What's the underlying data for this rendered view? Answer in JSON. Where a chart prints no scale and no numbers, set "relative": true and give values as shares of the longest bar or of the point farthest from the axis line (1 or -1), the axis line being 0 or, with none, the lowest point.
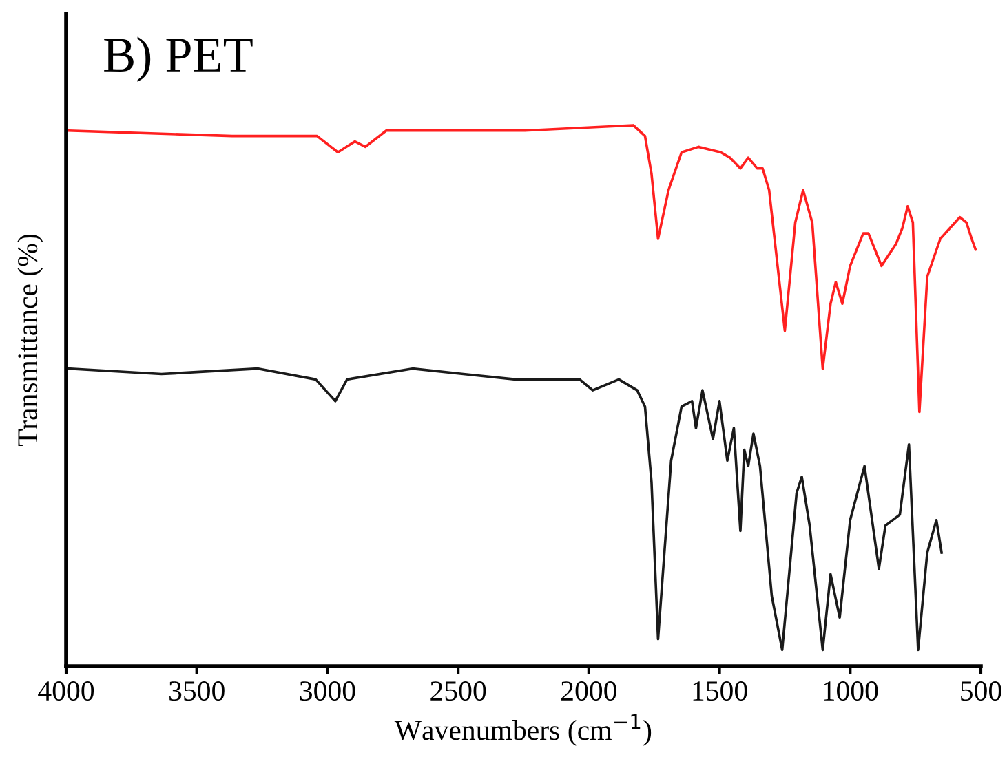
{
  "chart_data": {
    "type": "line",
    "title": "B) PET",
    "xlabel": "Wavenumbers (cm$^{−1}$)",
    "ylabel": "Transmittance (%)",
    "relative": true,
    "xlim": [
      4000,
      500
    ],
    "xticks": [
      4000,
      3500,
      3000,
      2500,
      2000,
      1500,
      1000,
      500
    ],
    "grid": false,
    "legend": false,
    "marker": "none",
    "line_style": "solid",
    "series": [
      {
        "color": "#ff2020",
        "x": [
          3990,
          3365,
          3040,
          2960,
          2895,
          2855,
          2775,
          2250,
          1830,
          1785,
          1760,
          1735,
          1695,
          1645,
          1580,
          1495,
          1460,
          1420,
          1390,
          1355,
          1335,
          1310,
          1250,
          1210,
          1180,
          1145,
          1105,
          1075,
          1055,
          1030,
          1000,
          950,
          930,
          880,
          825,
          800,
          780,
          760,
          735,
          705,
          655,
          580,
          555,
          535,
          520
        ],
        "values": [
          0.99,
          0.98,
          0.98,
          0.95,
          0.97,
          0.96,
          0.99,
          0.99,
          1.0,
          0.98,
          0.91,
          0.79,
          0.88,
          0.95,
          0.96,
          0.95,
          0.94,
          0.92,
          0.94,
          0.92,
          0.92,
          0.88,
          0.62,
          0.82,
          0.88,
          0.82,
          0.55,
          0.67,
          0.71,
          0.67,
          0.74,
          0.8,
          0.8,
          0.74,
          0.78,
          0.81,
          0.85,
          0.82,
          0.47,
          0.72,
          0.79,
          0.83,
          0.82,
          0.79,
          0.77
        ]
      },
      {
        "color": "#1a1a1a",
        "x": [
          3995,
          3635,
          3265,
          3045,
          2970,
          2925,
          2675,
          2480,
          2280,
          2035,
          1985,
          1885,
          1815,
          1785,
          1760,
          1735,
          1685,
          1645,
          1605,
          1590,
          1565,
          1525,
          1500,
          1470,
          1445,
          1420,
          1405,
          1390,
          1370,
          1345,
          1300,
          1260,
          1205,
          1185,
          1155,
          1105,
          1075,
          1040,
          1000,
          945,
          890,
          865,
          810,
          775,
          740,
          705,
          670,
          650
        ],
        "values": [
          0.55,
          0.54,
          0.55,
          0.53,
          0.49,
          0.53,
          0.55,
          0.54,
          0.53,
          0.53,
          0.51,
          0.53,
          0.51,
          0.48,
          0.34,
          0.05,
          0.38,
          0.48,
          0.49,
          0.44,
          0.51,
          0.42,
          0.49,
          0.38,
          0.44,
          0.25,
          0.4,
          0.37,
          0.43,
          0.37,
          0.13,
          0.03,
          0.32,
          0.35,
          0.26,
          0.03,
          0.17,
          0.09,
          0.27,
          0.37,
          0.18,
          0.26,
          0.28,
          0.41,
          0.03,
          0.21,
          0.27,
          0.21
        ]
      }
    ]
  }
}
